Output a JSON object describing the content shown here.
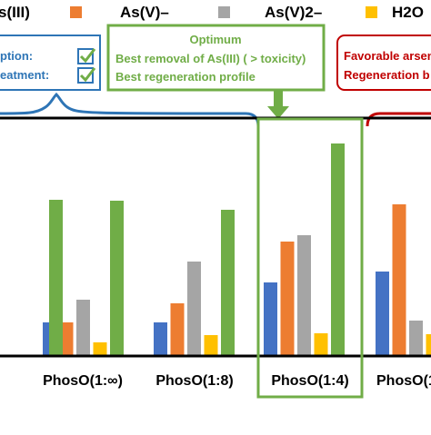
{
  "colors": {
    "as3": "#4472c4",
    "as5_minus": "#ed7d31",
    "as5_2minus": "#a5a5a5",
    "h2o": "#ffc000",
    "green": "#70ad47",
    "blue": "#2e75b6",
    "red": "#c00000"
  },
  "legend": [
    {
      "label": "s(III)"
    },
    {
      "label": "As(V)–"
    },
    {
      "label": "As(V)2–"
    },
    {
      "label": "H2O"
    }
  ],
  "boxes": {
    "left": {
      "lines": [
        "ption:",
        "eatment:"
      ]
    },
    "optimum": {
      "title": "Optimum",
      "lines": [
        "Best removal of As(III) ( > toxicity)",
        "Best regeneration profile"
      ]
    },
    "right": {
      "lines": [
        "Favorable arsen",
        "Regeneration b"
      ]
    }
  },
  "chart_data": {
    "type": "bar",
    "categories": [
      "",
      "PhosO(1:∞)",
      "PhosO(1:8)",
      "PhosO(1:4)",
      "PhosO(1"
    ],
    "series": [
      {
        "name": "s(III)",
        "values": [
          null,
          37,
          37,
          81,
          93
        ]
      },
      {
        "name": "As(V)–",
        "values": [
          null,
          37,
          58,
          126,
          167
        ]
      },
      {
        "name": "As(V)2–",
        "values": [
          null,
          62,
          104,
          133,
          39
        ]
      },
      {
        "name": "H2O",
        "values": [
          null,
          15,
          23,
          25,
          24
        ]
      },
      {
        "name": "",
        "values": [
          172,
          171,
          161,
          234,
          null
        ]
      }
    ],
    "ylim": [
      0,
      260
    ],
    "highlighted_category": "PhosO(1:4)"
  }
}
